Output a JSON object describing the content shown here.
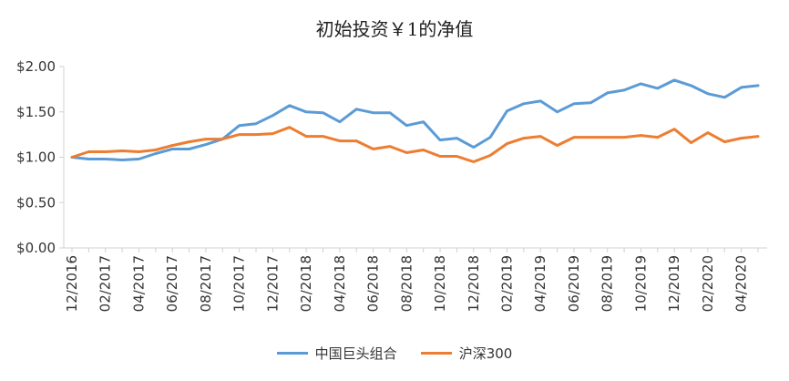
{
  "chart_data": {
    "type": "line",
    "title": "初始投资￥1的净值",
    "xlabel": "",
    "ylabel": "",
    "ylim": [
      0,
      2
    ],
    "y_ticks": [
      "$0.00",
      "$0.50",
      "$1.00",
      "$1.50",
      "$2.00"
    ],
    "y_tick_values": [
      0,
      0.5,
      1.0,
      1.5,
      2.0
    ],
    "x": [
      "12/2016",
      "01/2017",
      "02/2017",
      "03/2017",
      "04/2017",
      "05/2017",
      "06/2017",
      "07/2017",
      "08/2017",
      "09/2017",
      "10/2017",
      "11/2017",
      "12/2017",
      "01/2018",
      "02/2018",
      "03/2018",
      "04/2018",
      "05/2018",
      "06/2018",
      "07/2018",
      "08/2018",
      "09/2018",
      "10/2018",
      "11/2018",
      "12/2018",
      "01/2019",
      "02/2019",
      "03/2019",
      "04/2019",
      "05/2019",
      "06/2019",
      "07/2019",
      "08/2019",
      "09/2019",
      "10/2019",
      "11/2019",
      "12/2019",
      "01/2020",
      "02/2020",
      "03/2020",
      "04/2020",
      "05/2020"
    ],
    "x_tick_labels": [
      "12/2016",
      "02/2017",
      "04/2017",
      "06/2017",
      "08/2017",
      "10/2017",
      "12/2017",
      "02/2018",
      "04/2018",
      "06/2018",
      "08/2018",
      "10/2018",
      "12/2018",
      "02/2019",
      "04/2019",
      "06/2019",
      "08/2019",
      "10/2019",
      "12/2019",
      "02/2020",
      "04/2020"
    ],
    "series": [
      {
        "name": "中国巨头组合",
        "color": "#5B9BD5",
        "values": [
          1.0,
          0.98,
          0.98,
          0.97,
          0.98,
          1.04,
          1.09,
          1.09,
          1.14,
          1.2,
          1.35,
          1.37,
          1.46,
          1.57,
          1.5,
          1.49,
          1.39,
          1.53,
          1.49,
          1.49,
          1.35,
          1.39,
          1.19,
          1.21,
          1.11,
          1.22,
          1.51,
          1.59,
          1.62,
          1.5,
          1.59,
          1.6,
          1.71,
          1.74,
          1.81,
          1.76,
          1.85,
          1.79,
          1.7,
          1.66,
          1.77,
          1.79
        ]
      },
      {
        "name": "沪深300",
        "color": "#ED7D31",
        "values": [
          1.0,
          1.06,
          1.06,
          1.07,
          1.06,
          1.08,
          1.13,
          1.17,
          1.2,
          1.2,
          1.25,
          1.25,
          1.26,
          1.33,
          1.23,
          1.23,
          1.18,
          1.18,
          1.09,
          1.12,
          1.05,
          1.08,
          1.01,
          1.01,
          0.95,
          1.02,
          1.15,
          1.21,
          1.23,
          1.13,
          1.22,
          1.22,
          1.22,
          1.22,
          1.24,
          1.22,
          1.31,
          1.16,
          1.27,
          1.17,
          1.21,
          1.23
        ]
      }
    ],
    "grid": false,
    "legend_position": "bottom"
  }
}
